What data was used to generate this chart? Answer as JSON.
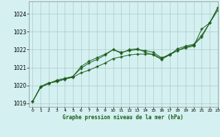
{
  "background_color": "#d4f0f0",
  "grid_color": "#b0c8c8",
  "line_color": "#1a5c1a",
  "xlabel": "Graphe pression niveau de la mer (hPa)",
  "ylim": [
    1018.8,
    1024.7
  ],
  "xlim": [
    -0.5,
    23
  ],
  "yticks": [
    1019,
    1020,
    1021,
    1022,
    1023,
    1024
  ],
  "xticks": [
    0,
    1,
    2,
    3,
    4,
    5,
    6,
    7,
    8,
    9,
    10,
    11,
    12,
    13,
    14,
    15,
    16,
    17,
    18,
    19,
    20,
    21,
    22,
    23
  ],
  "series1": [
    1019.1,
    1019.9,
    1020.1,
    1020.25,
    1020.35,
    1020.45,
    1020.7,
    1020.85,
    1021.05,
    1021.25,
    1021.5,
    1021.6,
    1021.7,
    1021.75,
    1021.75,
    1021.75,
    1021.5,
    1021.75,
    1021.95,
    1022.15,
    1022.25,
    1022.7,
    1023.5,
    1024.35
  ],
  "series2": [
    1019.1,
    1019.9,
    1020.1,
    1020.3,
    1020.4,
    1020.5,
    1021.05,
    1021.35,
    1021.55,
    1021.75,
    1022.0,
    1021.85,
    1021.95,
    1022.0,
    1021.95,
    1021.85,
    1021.55,
    1021.7,
    1021.95,
    1022.1,
    1022.2,
    1023.15,
    1023.5,
    1024.2
  ],
  "series3": [
    1019.1,
    1019.95,
    1020.15,
    1020.2,
    1020.35,
    1020.5,
    1020.95,
    1021.25,
    1021.45,
    1021.7,
    1022.0,
    1021.8,
    1022.0,
    1022.05,
    1021.85,
    1021.7,
    1021.45,
    1021.7,
    1022.05,
    1022.2,
    1022.3,
    1022.8,
    1023.5,
    1024.35
  ]
}
